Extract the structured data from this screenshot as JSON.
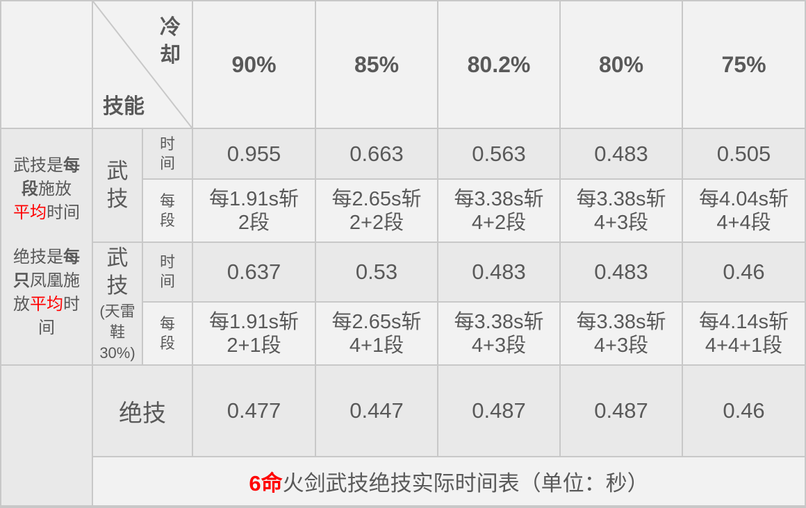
{
  "corner": {
    "top": "冷却",
    "bottom": "技能"
  },
  "cooldowns": [
    "90%",
    "85%",
    "80.2%",
    "80%",
    "75%"
  ],
  "left_note": {
    "p1": [
      {
        "t": "武技是",
        "style": ""
      },
      {
        "t": "每段",
        "style": "b"
      },
      {
        "t": "施放 ",
        "style": ""
      },
      {
        "t": "平均",
        "style": "red"
      },
      {
        "t": "时间",
        "style": ""
      }
    ],
    "p2": [
      {
        "t": "绝技是",
        "style": ""
      },
      {
        "t": "每只",
        "style": "b"
      },
      {
        "t": "凤凰施放",
        "style": ""
      },
      {
        "t": "平均",
        "style": "red"
      },
      {
        "t": "时间",
        "style": ""
      }
    ]
  },
  "groups": [
    {
      "label": "武技",
      "sub": "",
      "time_label": "时间",
      "seg_label": "每段",
      "times": [
        "0.955",
        "0.663",
        "0.563",
        "0.483",
        "0.505"
      ],
      "segs": [
        [
          "每1.91s斩",
          "2段"
        ],
        [
          "每2.65s斩",
          "2+2段"
        ],
        [
          "每3.38s斩",
          "4+2段"
        ],
        [
          "每3.38s斩",
          "4+3段"
        ],
        [
          "每4.04s斩",
          "4+4段"
        ]
      ]
    },
    {
      "label": "武技",
      "sub": "(天雷鞋30%)",
      "time_label": "时间",
      "seg_label": "每段",
      "times": [
        "0.637",
        "0.53",
        "0.483",
        "0.483",
        "0.46"
      ],
      "segs": [
        [
          "每1.91s斩",
          "2+1段"
        ],
        [
          "每2.65s斩",
          "4+1段"
        ],
        [
          "每3.38s斩",
          "4+3段"
        ],
        [
          "每3.38s斩",
          "4+3段"
        ],
        [
          "每4.14s斩",
          "4+4+1段"
        ]
      ]
    }
  ],
  "ultimate": {
    "label": "绝技",
    "values": [
      "0.477",
      "0.447",
      "0.487",
      "0.487",
      "0.46"
    ]
  },
  "footer": {
    "highlight": "6命",
    "rest": "火剑武技绝技实际时间表（单位：秒）"
  },
  "colors": {
    "text": "#595959",
    "accent": "#ff0000",
    "border": "#c8c8c8",
    "cell": "#f2f2f2",
    "cell_alt": "#e9e9e9"
  }
}
